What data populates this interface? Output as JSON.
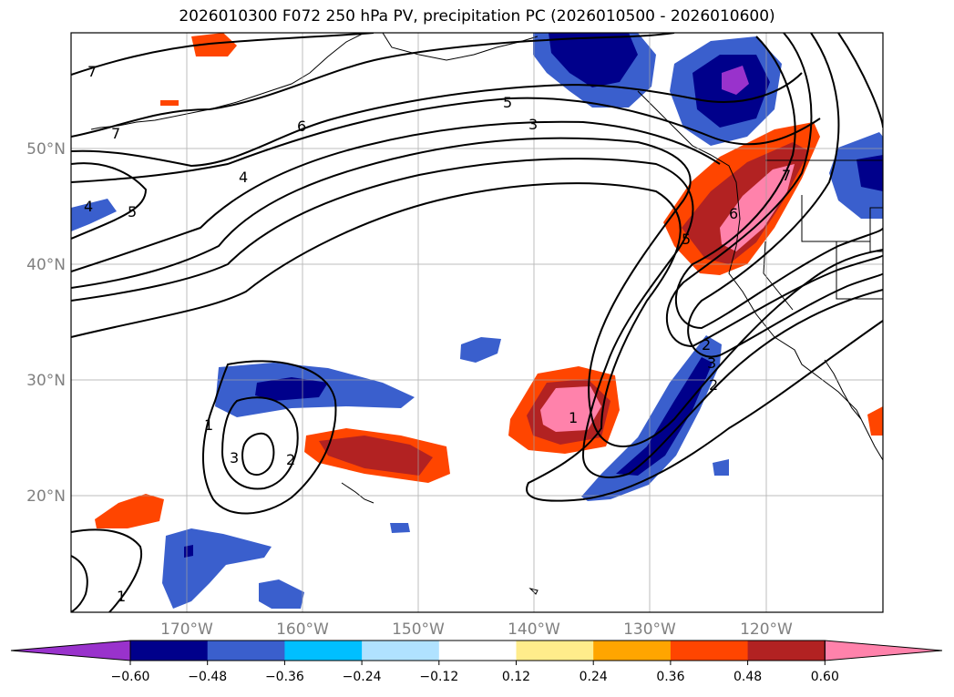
{
  "title": "2026010300 F072 250 hPa PV, precipitation PC (2026010500 - 2026010600)",
  "latitude_labels": [
    "50°N",
    "40°N",
    "30°N",
    "20°N"
  ],
  "longitude_labels": [
    "170°W",
    "160°W",
    "150°W",
    "140°W",
    "130°W",
    "120°W"
  ],
  "pv_contour_labels": [
    "7",
    "7",
    "6",
    "5",
    "5",
    "4",
    "4",
    "3",
    "3",
    "2",
    "2",
    "1",
    "1",
    "1",
    "6",
    "7",
    "5",
    "3",
    "2"
  ],
  "colorbar": {
    "ticks": [
      "−0.60",
      "−0.48",
      "−0.36",
      "−0.24",
      "−0.12",
      "0.12",
      "0.24",
      "0.36",
      "0.48",
      "0.60"
    ],
    "colors": [
      "#9932cc",
      "#00008b",
      "#3a5fcd",
      "#00bfff",
      "#b0e2ff",
      "#ffffff",
      "#ffec8b",
      "#ffa500",
      "#ff4500",
      "#b22222",
      "#ff82ab"
    ]
  },
  "colors": {
    "purple": "#9932cc",
    "navy": "#00008b",
    "royal": "#3a5fcd",
    "cyan": "#00bfff",
    "lightblue": "#b0e2ff",
    "yellow": "#ffec8b",
    "orange": "#ffa500",
    "redorange": "#ff4500",
    "firebrick": "#b22222",
    "pink": "#ff82ab"
  }
}
